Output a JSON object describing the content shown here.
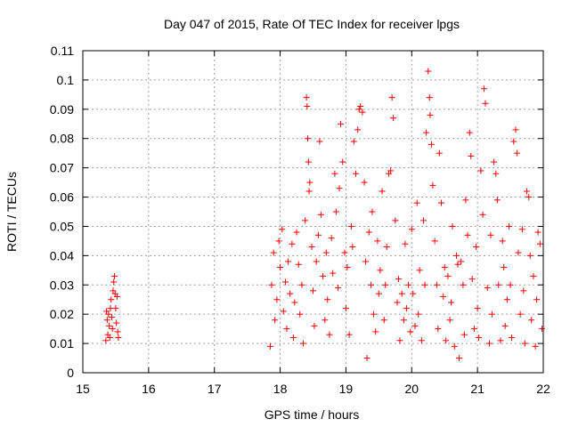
{
  "chart_data": {
    "type": "scatter",
    "title": "Day 047 of 2015, Rate Of TEC Index for receiver lpgs",
    "xlabel": "GPS time / hours",
    "ylabel": "ROTI / TECUs",
    "xlim": [
      15,
      22
    ],
    "ylim": [
      0,
      0.11
    ],
    "xticks": [
      15,
      16,
      17,
      18,
      19,
      20,
      21,
      22
    ],
    "yticks": [
      0,
      0.01,
      0.02,
      0.03,
      0.04,
      0.05,
      0.06,
      0.07,
      0.08,
      0.09,
      0.1,
      0.11
    ],
    "xtick_labels": [
      "15",
      "16",
      "17",
      "18",
      "19",
      "20",
      "21",
      "22"
    ],
    "ytick_labels": [
      "0",
      "0.01",
      "0.02",
      "0.03",
      "0.04",
      "0.05",
      "0.06",
      "0.07",
      "0.08",
      "0.09",
      "0.1",
      "0.11"
    ],
    "grid": true,
    "marker": "plus",
    "marker_color": "#ff0000",
    "series": [
      {
        "points": [
          [
            15.35,
            0.011
          ],
          [
            15.36,
            0.021
          ],
          [
            15.37,
            0.018
          ],
          [
            15.38,
            0.013
          ],
          [
            15.39,
            0.02
          ],
          [
            15.4,
            0.016
          ],
          [
            15.41,
            0.012
          ],
          [
            15.42,
            0.022
          ],
          [
            15.43,
            0.025
          ],
          [
            15.44,
            0.019
          ],
          [
            15.45,
            0.015
          ],
          [
            15.46,
            0.028
          ],
          [
            15.47,
            0.031
          ],
          [
            15.48,
            0.033
          ],
          [
            15.49,
            0.027
          ],
          [
            15.5,
            0.022
          ],
          [
            15.51,
            0.017
          ],
          [
            15.52,
            0.026
          ],
          [
            15.53,
            0.014
          ],
          [
            15.54,
            0.012
          ],
          [
            17.85,
            0.009
          ],
          [
            17.87,
            0.03
          ],
          [
            17.9,
            0.041
          ],
          [
            17.92,
            0.018
          ],
          [
            17.95,
            0.025
          ],
          [
            17.98,
            0.045
          ],
          [
            18.0,
            0.036
          ],
          [
            18.03,
            0.049
          ],
          [
            18.05,
            0.021
          ],
          [
            18.08,
            0.031
          ],
          [
            18.1,
            0.015
          ],
          [
            18.12,
            0.038
          ],
          [
            18.15,
            0.027
          ],
          [
            18.18,
            0.044
          ],
          [
            18.2,
            0.012
          ],
          [
            18.22,
            0.024
          ],
          [
            18.25,
            0.048
          ],
          [
            18.28,
            0.037
          ],
          [
            18.3,
            0.02
          ],
          [
            18.33,
            0.03
          ],
          [
            18.35,
            0.01
          ],
          [
            18.38,
            0.052
          ],
          [
            18.4,
            0.094
          ],
          [
            18.41,
            0.091
          ],
          [
            18.42,
            0.08
          ],
          [
            18.43,
            0.072
          ],
          [
            18.44,
            0.062
          ],
          [
            18.45,
            0.065
          ],
          [
            18.48,
            0.043
          ],
          [
            18.5,
            0.028
          ],
          [
            18.52,
            0.016
          ],
          [
            18.55,
            0.038
          ],
          [
            18.58,
            0.047
          ],
          [
            18.6,
            0.079
          ],
          [
            18.62,
            0.054
          ],
          [
            18.65,
            0.033
          ],
          [
            18.68,
            0.018
          ],
          [
            18.7,
            0.041
          ],
          [
            18.72,
            0.025
          ],
          [
            18.75,
            0.013
          ],
          [
            18.78,
            0.046
          ],
          [
            18.8,
            0.034
          ],
          [
            18.83,
            0.068
          ],
          [
            18.85,
            0.055
          ],
          [
            18.88,
            0.029
          ],
          [
            18.9,
            0.063
          ],
          [
            18.92,
            0.085
          ],
          [
            18.95,
            0.072
          ],
          [
            18.98,
            0.041
          ],
          [
            19.0,
            0.022
          ],
          [
            19.02,
            0.036
          ],
          [
            19.05,
            0.013
          ],
          [
            19.08,
            0.05
          ],
          [
            19.1,
            0.043
          ],
          [
            19.12,
            0.079
          ],
          [
            19.15,
            0.068
          ],
          [
            19.18,
            0.083
          ],
          [
            19.2,
            0.09
          ],
          [
            19.22,
            0.091
          ],
          [
            19.25,
            0.089
          ],
          [
            19.28,
            0.065
          ],
          [
            19.3,
            0.038
          ],
          [
            19.32,
            0.005
          ],
          [
            19.35,
            0.048
          ],
          [
            19.38,
            0.03
          ],
          [
            19.4,
            0.055
          ],
          [
            19.42,
            0.02
          ],
          [
            19.45,
            0.014
          ],
          [
            19.48,
            0.045
          ],
          [
            19.5,
            0.027
          ],
          [
            19.52,
            0.035
          ],
          [
            19.55,
            0.062
          ],
          [
            19.58,
            0.018
          ],
          [
            19.6,
            0.03
          ],
          [
            19.62,
            0.043
          ],
          [
            19.65,
            0.068
          ],
          [
            19.68,
            0.069
          ],
          [
            19.7,
            0.094
          ],
          [
            19.72,
            0.087
          ],
          [
            19.75,
            0.052
          ],
          [
            19.78,
            0.024
          ],
          [
            19.8,
            0.032
          ],
          [
            19.82,
            0.011
          ],
          [
            19.85,
            0.027
          ],
          [
            19.88,
            0.018
          ],
          [
            19.9,
            0.044
          ],
          [
            19.92,
            0.022
          ],
          [
            19.95,
            0.03
          ],
          [
            19.98,
            0.014
          ],
          [
            20.0,
            0.049
          ],
          [
            20.02,
            0.027
          ],
          [
            20.05,
            0.016
          ],
          [
            20.08,
            0.058
          ],
          [
            20.1,
            0.02
          ],
          [
            20.12,
            0.035
          ],
          [
            20.15,
            0.011
          ],
          [
            20.18,
            0.052
          ],
          [
            20.2,
            0.03
          ],
          [
            20.22,
            0.082
          ],
          [
            20.25,
            0.103
          ],
          [
            20.27,
            0.094
          ],
          [
            20.28,
            0.088
          ],
          [
            20.3,
            0.078
          ],
          [
            20.32,
            0.064
          ],
          [
            20.35,
            0.045
          ],
          [
            20.38,
            0.03
          ],
          [
            20.4,
            0.015
          ],
          [
            20.42,
            0.075
          ],
          [
            20.45,
            0.058
          ],
          [
            20.48,
            0.026
          ],
          [
            20.5,
            0.036
          ],
          [
            20.52,
            0.011
          ],
          [
            20.55,
            0.033
          ],
          [
            20.58,
            0.018
          ],
          [
            20.6,
            0.024
          ],
          [
            20.62,
            0.05
          ],
          [
            20.65,
            0.009
          ],
          [
            20.68,
            0.04
          ],
          [
            20.7,
            0.037
          ],
          [
            20.72,
            0.005
          ],
          [
            20.75,
            0.038
          ],
          [
            20.78,
            0.03
          ],
          [
            20.8,
            0.013
          ],
          [
            20.82,
            0.059
          ],
          [
            20.85,
            0.047
          ],
          [
            20.88,
            0.082
          ],
          [
            20.9,
            0.074
          ],
          [
            20.92,
            0.032
          ],
          [
            20.95,
            0.015
          ],
          [
            20.98,
            0.043
          ],
          [
            21.0,
            0.022
          ],
          [
            21.02,
            0.012
          ],
          [
            21.05,
            0.069
          ],
          [
            21.08,
            0.054
          ],
          [
            21.1,
            0.097
          ],
          [
            21.12,
            0.092
          ],
          [
            21.15,
            0.029
          ],
          [
            21.18,
            0.01
          ],
          [
            21.2,
            0.047
          ],
          [
            21.22,
            0.02
          ],
          [
            21.25,
            0.072
          ],
          [
            21.28,
            0.068
          ],
          [
            21.3,
            0.059
          ],
          [
            21.32,
            0.03
          ],
          [
            21.35,
            0.011
          ],
          [
            21.38,
            0.045
          ],
          [
            21.4,
            0.036
          ],
          [
            21.42,
            0.016
          ],
          [
            21.45,
            0.025
          ],
          [
            21.48,
            0.05
          ],
          [
            21.5,
            0.03
          ],
          [
            21.52,
            0.012
          ],
          [
            21.55,
            0.079
          ],
          [
            21.58,
            0.083
          ],
          [
            21.6,
            0.075
          ],
          [
            21.62,
            0.041
          ],
          [
            21.65,
            0.02
          ],
          [
            21.68,
            0.049
          ],
          [
            21.7,
            0.028
          ],
          [
            21.72,
            0.01
          ],
          [
            21.75,
            0.062
          ],
          [
            21.78,
            0.06
          ],
          [
            21.8,
            0.04
          ],
          [
            21.82,
            0.018
          ],
          [
            21.85,
            0.033
          ],
          [
            21.88,
            0.009
          ],
          [
            21.9,
            0.025
          ],
          [
            21.92,
            0.048
          ],
          [
            21.95,
            0.044
          ],
          [
            21.98,
            0.015
          ]
        ]
      }
    ]
  }
}
